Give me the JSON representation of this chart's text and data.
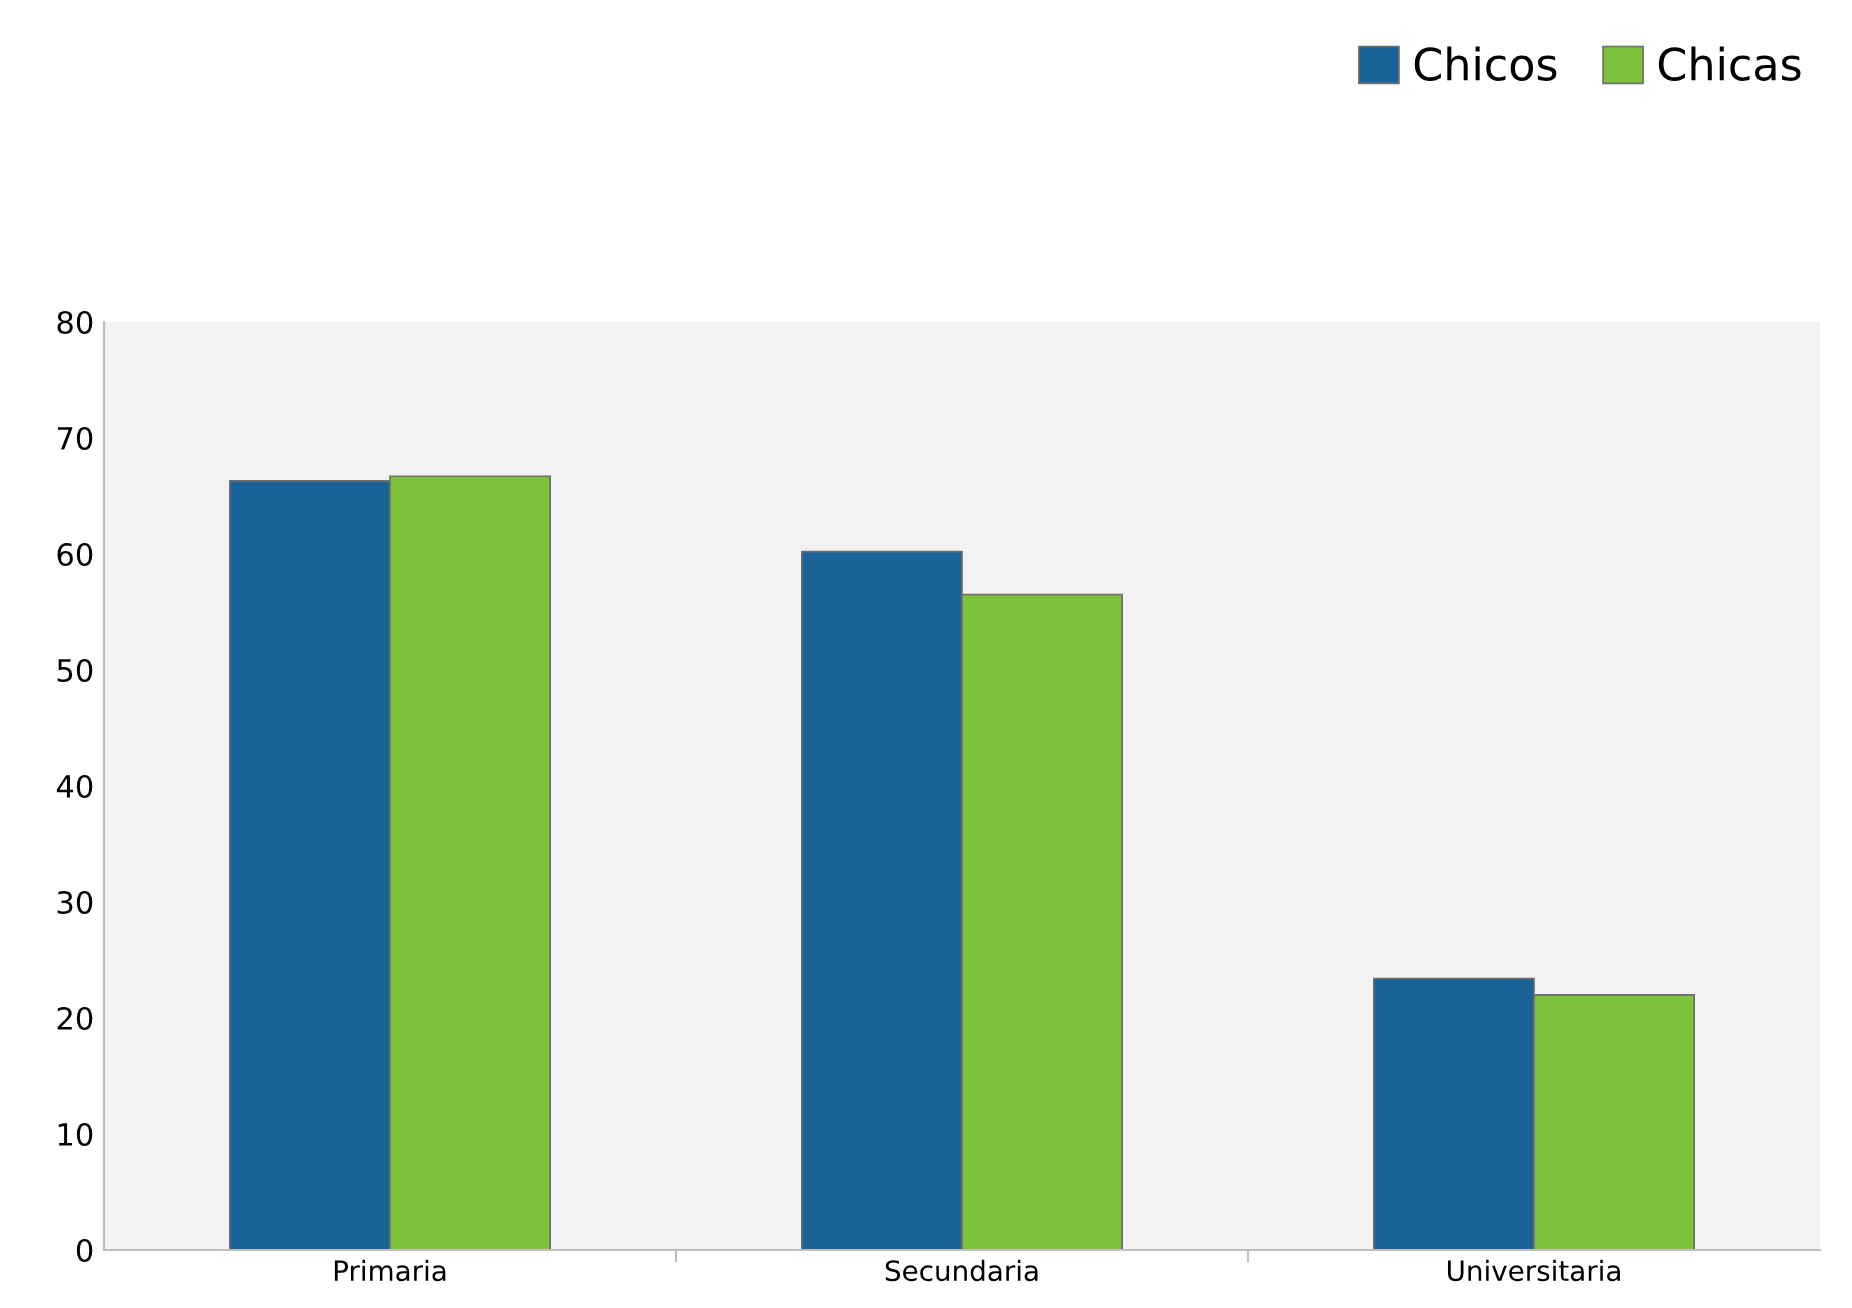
{
  "chart_data": {
    "type": "bar",
    "categories": [
      "Primaria",
      "Secundaria",
      "Universitaria"
    ],
    "series": [
      {
        "name": "Chicos",
        "color": "#1a6399",
        "values": [
          66.3,
          60.2,
          23.4
        ]
      },
      {
        "name": "Chicas",
        "color": "#7cc23a",
        "values": [
          66.7,
          56.5,
          22.0
        ]
      }
    ],
    "ylim": [
      0,
      80
    ],
    "yticks": [
      0,
      10,
      20,
      30,
      40,
      50,
      60,
      70,
      80
    ],
    "grid": false,
    "legend": "top right"
  }
}
